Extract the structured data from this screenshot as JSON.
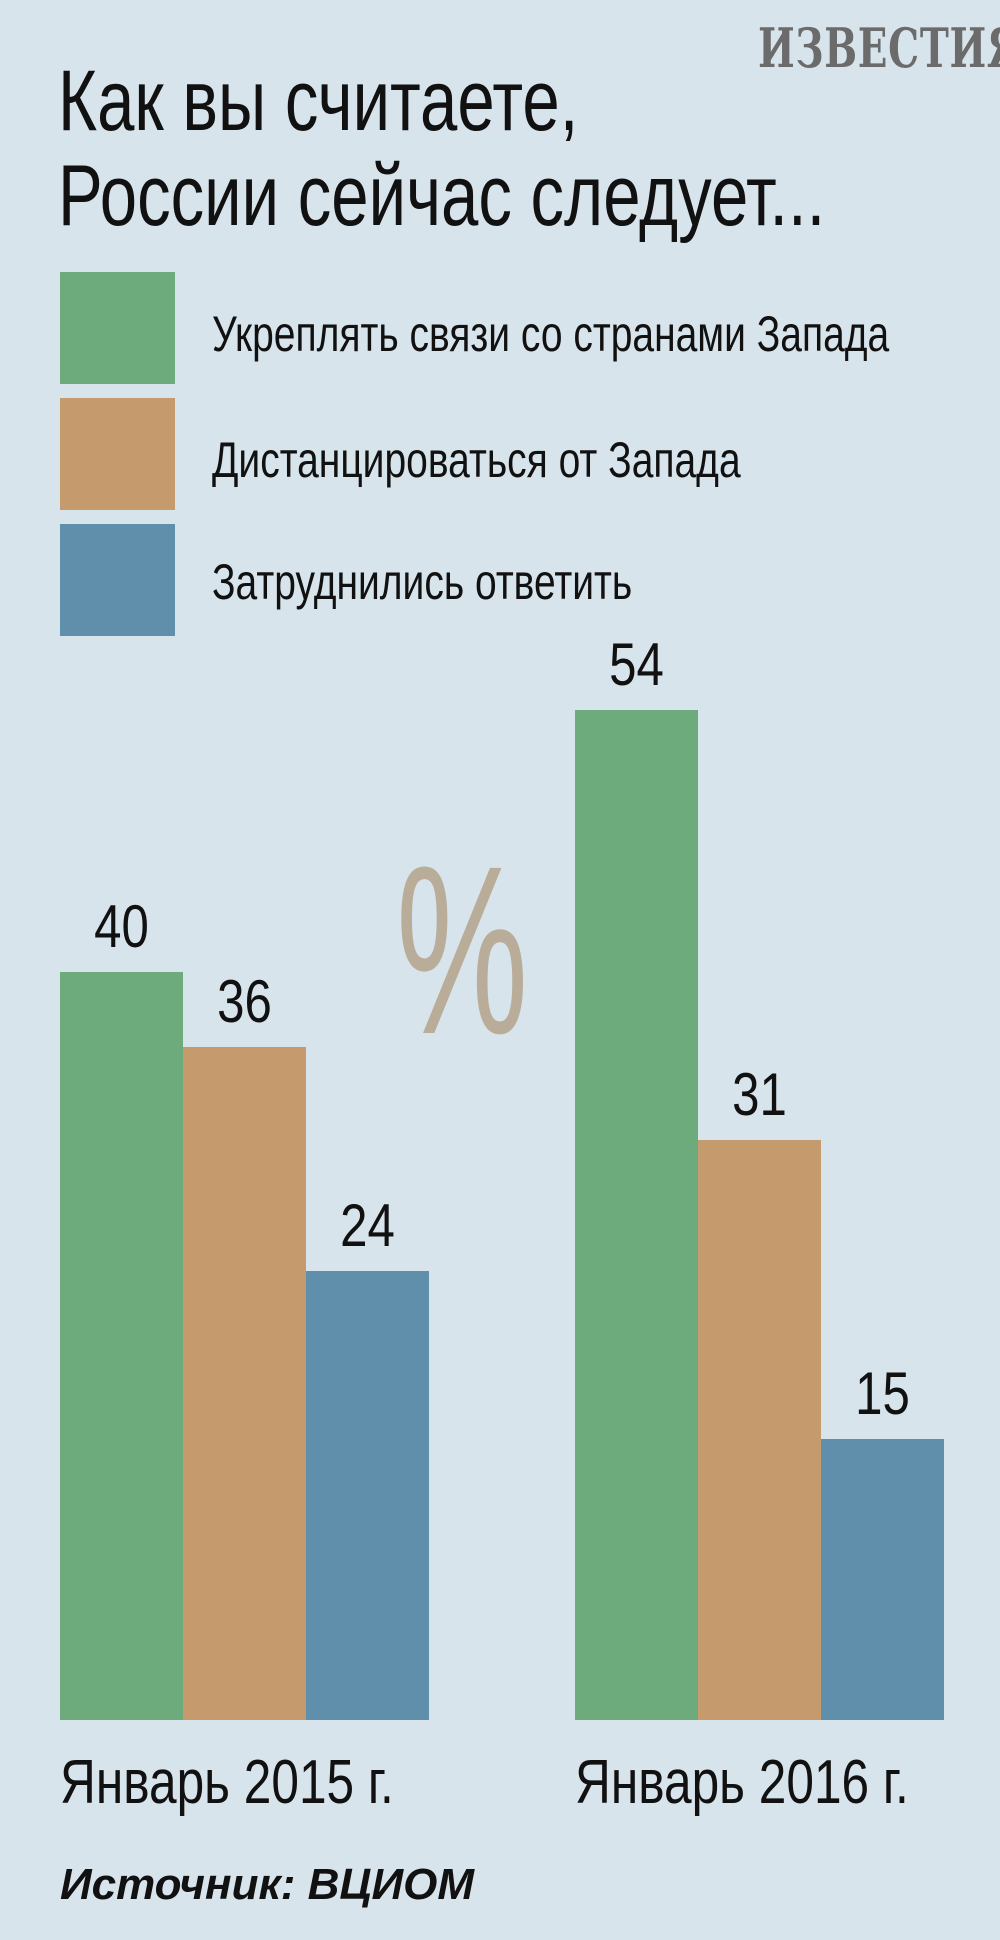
{
  "logo": "ИЗВЕСТИЯ",
  "title": [
    "Как вы считаете,",
    "России сейчас следует..."
  ],
  "percent_sign": "%",
  "source": "Источник: ВЦИОМ",
  "colors": {
    "background": "#d8e4ec",
    "green": "#6daa7c",
    "orange": "#c59a6d",
    "blue": "#5f8faa",
    "percent": "#b9ad99"
  },
  "legend": [
    {
      "label": "Укреплять связи со странами Запада",
      "color": "#6daa7c"
    },
    {
      "label": "Дистанцироваться от Запада",
      "color": "#c59a6d"
    },
    {
      "label": "Затруднились ответить",
      "color": "#5f8faa"
    }
  ],
  "chart_data": {
    "type": "bar",
    "categories": [
      "Январь 2015 г.",
      "Январь 2016 г."
    ],
    "series": [
      {
        "name": "Укреплять связи со странами Запада",
        "color": "#6daa7c",
        "values": [
          40,
          54
        ]
      },
      {
        "name": "Дистанцироваться от Запада",
        "color": "#c59a6d",
        "values": [
          36,
          31
        ]
      },
      {
        "name": "Затруднились ответить",
        "color": "#5f8faa",
        "values": [
          24,
          15
        ]
      }
    ],
    "ylim": [
      0,
      54
    ],
    "grid": false,
    "legend_position": "top"
  }
}
